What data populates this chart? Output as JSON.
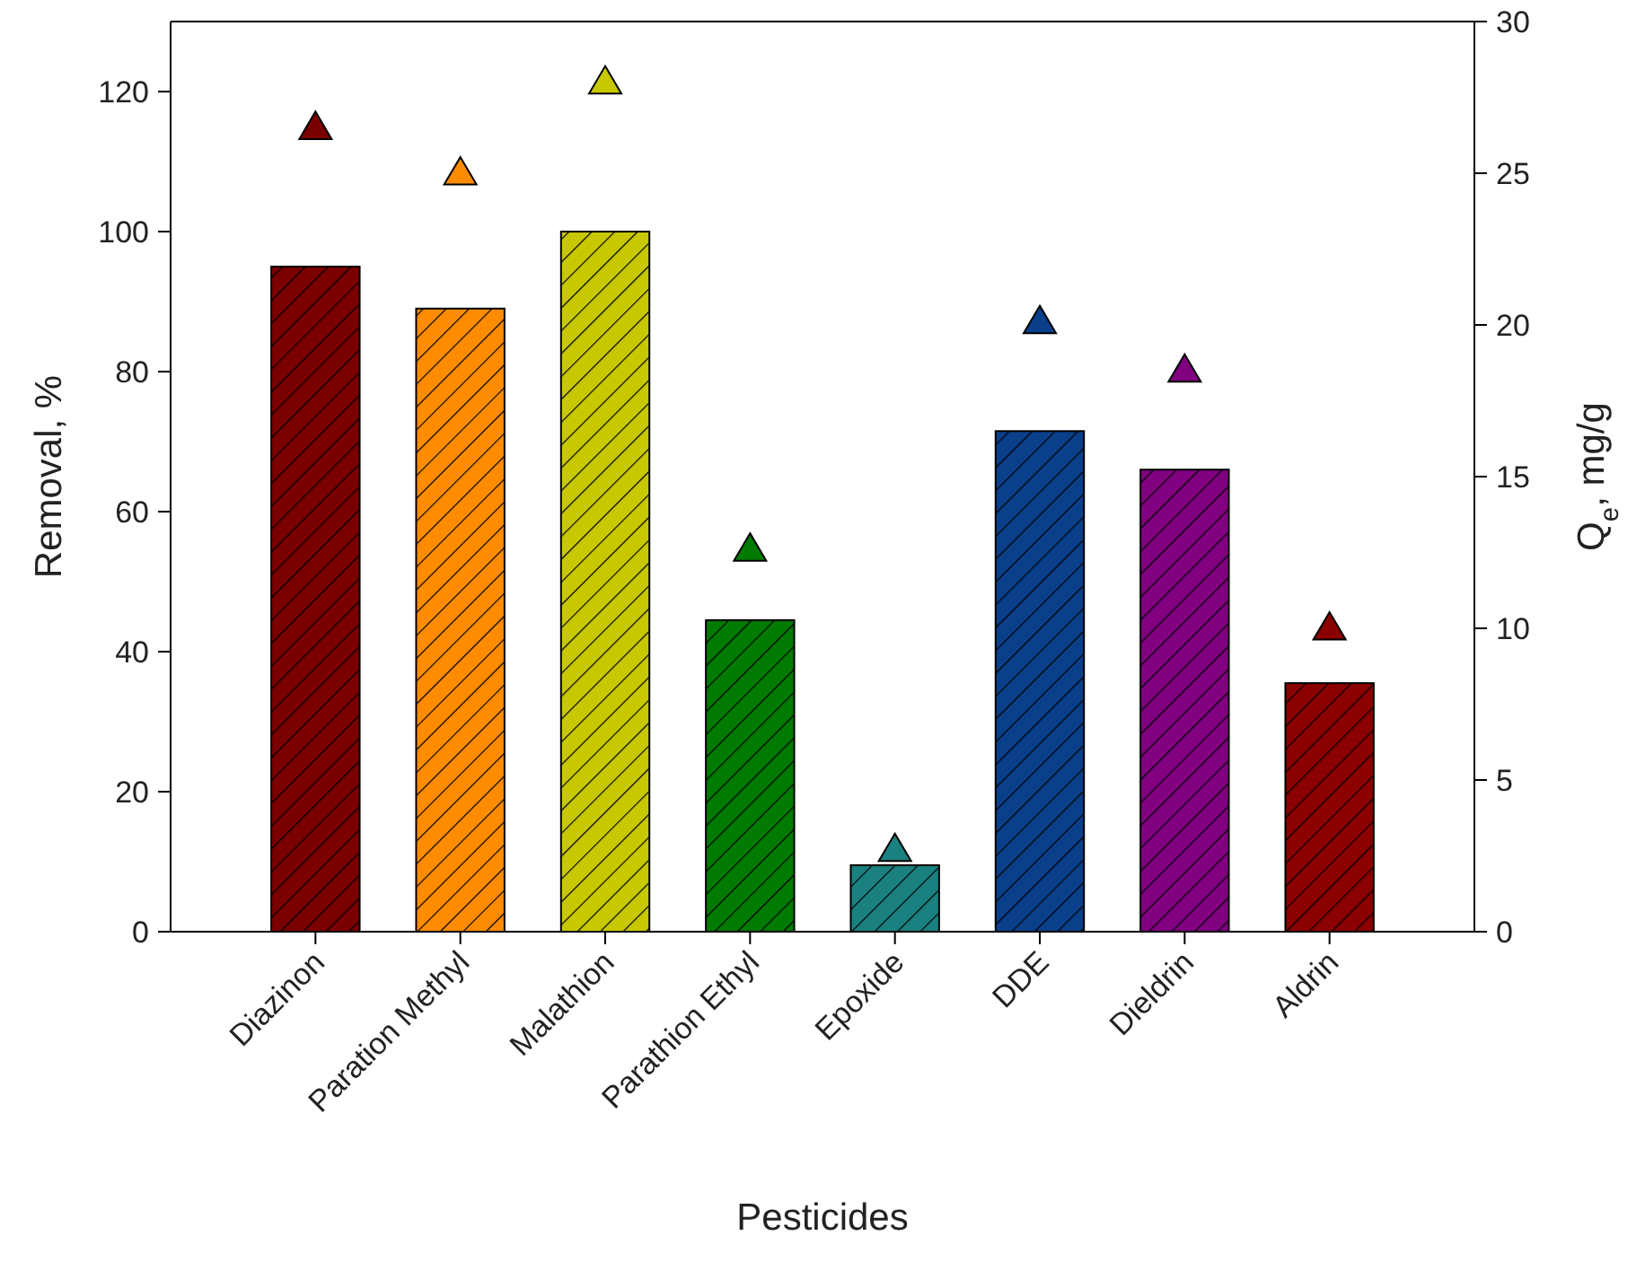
{
  "chart_data": {
    "type": "bar",
    "xlabel": "Pesticides",
    "ylabel": "Removal, %",
    "y2label": "Q$_{e}$, mg/g",
    "categories": [
      "Diazinon",
      "Paration Methyl",
      "Malathion",
      "Parathion Ethyl",
      "Epoxide",
      "DDE",
      "Dieldrin",
      "Aldrin"
    ],
    "series": [
      {
        "colors": [
          "#7a0000",
          "#ff8c00",
          "#c8c800",
          "#007a00",
          "#1a8080",
          "#0a3f8a",
          "#800080",
          "#8b0000"
        ],
        "values": [
          95,
          89,
          100,
          44.5,
          9.5,
          71.5,
          66,
          35.5
        ]
      },
      {
        "type": "scatter",
        "axis": "y2",
        "colors": [
          "#7a0000",
          "#ff8c00",
          "#c8c800",
          "#007a00",
          "#1a8080",
          "#0a3f8a",
          "#800080",
          "#8b0000"
        ],
        "values": [
          26.5,
          25,
          28,
          12.6,
          2.7,
          20.1,
          18.5,
          10
        ]
      }
    ],
    "marker": "triangle",
    "ylim": [
      0,
      130
    ],
    "yticks": [
      0,
      20,
      40,
      60,
      80,
      100,
      120
    ],
    "y2lim": [
      0,
      30
    ],
    "y2ticks": [
      0,
      5,
      10,
      15,
      20,
      25,
      30
    ]
  }
}
